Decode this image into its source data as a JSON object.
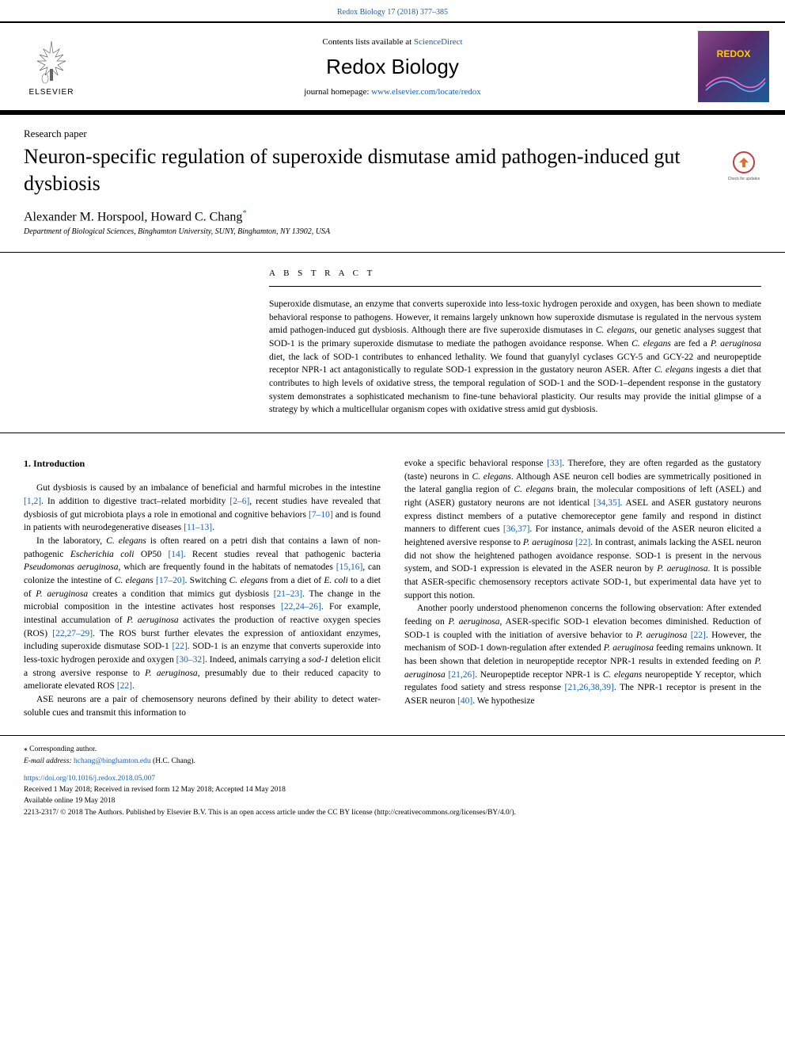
{
  "header": {
    "top_citation": "Redox Biology 17 (2018) 377–385",
    "contents_text": "Contents lists available at ",
    "contents_link": "ScienceDirect",
    "journal_name": "Redox Biology",
    "homepage_label": "journal homepage: ",
    "homepage_url": "www.elsevier.com/locate/redox",
    "elsevier_label": "ELSEVIER",
    "redox_label": "REDOX"
  },
  "paper": {
    "type": "Research paper",
    "title": "Neuron-specific regulation of superoxide dismutase amid pathogen-induced gut dysbiosis",
    "authors": "Alexander M. Horspool, Howard C. Chang",
    "corresponding_mark": "*",
    "affiliation": "Department of Biological Sciences, Binghamton University, SUNY, Binghamton, NY 13902, USA"
  },
  "abstract": {
    "heading": "A B S T R A C T",
    "text_parts": [
      "Superoxide dismutase, an enzyme that converts superoxide into less-toxic hydrogen peroxide and oxygen, has been shown to mediate behavioral response to pathogens. However, it remains largely unknown how superoxide dismutase is regulated in the nervous system amid pathogen-induced gut dysbiosis. Although there are five superoxide dismutases in ",
      "C. elegans",
      ", our genetic analyses suggest that SOD-1 is the primary superoxide dismutase to mediate the pathogen avoidance response. When ",
      "C. elegans",
      " are fed a ",
      "P. aeruginosa",
      " diet, the lack of SOD-1 contributes to enhanced lethality. We found that guanylyl cyclases GCY-5 and GCY-22 and neuropeptide receptor NPR-1 act antagonistically to regulate SOD-1 expression in the gustatory neuron ASER. After ",
      "C. elegans",
      " ingests a diet that contributes to high levels of oxidative stress, the temporal regulation of SOD-1 and the SOD-1–dependent response in the gustatory system demonstrates a sophisticated mechanism to fine-tune behavioral plasticity. Our results may provide the initial glimpse of a strategy by which a multicellular organism copes with oxidative stress amid gut dysbiosis."
    ]
  },
  "intro": {
    "heading": "1. Introduction",
    "left_column": {
      "p1_parts": [
        "Gut dysbiosis is caused by an imbalance of beneficial and harmful microbes in the intestine ",
        "[1,2]",
        ". In addition to digestive tract–related morbidity ",
        "[2–6]",
        ", recent studies have revealed that dysbiosis of gut microbiota plays a role in emotional and cognitive behaviors ",
        "[7–10]",
        " and is found in patients with neurodegenerative diseases ",
        "[11–13]",
        "."
      ],
      "p2_parts": [
        "In the laboratory, ",
        "C. elegans",
        " is often reared on a petri dish that contains a lawn of non-pathogenic ",
        "Escherichia coli",
        " OP50 ",
        "[14]",
        ". Recent studies reveal that pathogenic bacteria ",
        "Pseudomonas aeruginosa",
        ", which are frequently found in the habitats of nematodes ",
        "[15,16]",
        ", can colonize the intestine of ",
        "C. elegans",
        " ",
        "[17–20]",
        ". Switching ",
        "C. elegans",
        " from a diet of ",
        "E. coli",
        " to a diet of ",
        "P. aeruginosa",
        " creates a condition that mimics gut dysbiosis ",
        "[21–23]",
        ". The change in the microbial composition in the intestine activates host responses ",
        "[22,24–26]",
        ". For example, intestinal accumulation of ",
        "P. aeruginosa",
        " activates the production of reactive oxygen species (ROS) ",
        "[22,27–29]",
        ". The ROS burst further elevates the expression of antioxidant enzymes, including superoxide dismutase SOD-1 ",
        "[22]",
        ". SOD-1 is an enzyme that converts superoxide into less-toxic hydrogen peroxide and oxygen ",
        "[30–32]",
        ". Indeed, animals carrying a ",
        "sod-1",
        " deletion elicit a strong aversive response to ",
        "P. aeruginosa",
        ", presumably due to their reduced capacity to ameliorate elevated ROS ",
        "[22]",
        "."
      ],
      "p3_parts": [
        "ASE neurons are a pair of chemosensory neurons defined by their ability to detect water-soluble cues and transmit this information to"
      ]
    },
    "right_column": {
      "p1_parts": [
        "evoke a specific behavioral response ",
        "[33]",
        ". Therefore, they are often regarded as the gustatory (taste) neurons in ",
        "C. elegans",
        ". Although ASE neuron cell bodies are symmetrically positioned in the lateral ganglia region of ",
        "C. elegans",
        " brain, the molecular compositions of left (ASEL) and right (ASER) gustatory neurons are not identical ",
        "[34,35]",
        ". ASEL and ASER gustatory neurons express distinct members of a putative chemoreceptor gene family and respond in distinct manners to different cues ",
        "[36,37]",
        ". For instance, animals devoid of the ASER neuron elicited a heightened aversive response to ",
        "P. aeruginosa",
        " ",
        "[22]",
        ". In contrast, animals lacking the ASEL neuron did not show the heightened pathogen avoidance response. SOD-1 is present in the nervous system, and SOD-1 expression is elevated in the ASER neuron by ",
        "P. aeruginosa",
        ". It is possible that ASER-specific chemosensory receptors activate SOD-1, but experimental data have yet to support this notion."
      ],
      "p2_parts": [
        "Another poorly understood phenomenon concerns the following observation: After extended feeding on ",
        "P. aeruginosa",
        ", ASER-specific SOD-1 elevation becomes diminished. Reduction of SOD-1 is coupled with the initiation of aversive behavior to ",
        "P. aeruginosa",
        " ",
        "[22]",
        ". However, the mechanism of SOD-1 down-regulation after extended ",
        "P. aeruginosa",
        " feeding remains unknown. It has been shown that deletion in neuropeptide receptor NPR-1 results in extended feeding on ",
        "P. aeruginosa",
        " ",
        "[21,26]",
        ". Neuropeptide receptor NPR-1 is ",
        "C. elegans",
        " neuropeptide Y receptor, which regulates food satiety and stress response ",
        "[21,26,38,39]",
        ". The NPR-1 receptor is present in the ASER neuron ",
        "[40]",
        ". We hypothesize"
      ]
    }
  },
  "footer": {
    "corresponding_note": "⁎ Corresponding author.",
    "email_label": "E-mail address: ",
    "email": "hchang@binghamton.edu",
    "email_suffix": " (H.C. Chang).",
    "doi": "https://doi.org/10.1016/j.redox.2018.05.007",
    "received": "Received 1 May 2018; Received in revised form 12 May 2018; Accepted 14 May 2018",
    "available": "Available online 19 May 2018",
    "copyright": "2213-2317/ © 2018 The Authors. Published by Elsevier B.V. This is an open access article under the CC BY license (http://creativecommons.org/licenses/BY/4.0/)."
  },
  "colors": {
    "link": "#1860b0",
    "text": "#000000",
    "redox_bg_start": "#8a4a8a",
    "redox_bg_end": "#1a5a9a",
    "redox_text": "#ffcc00"
  }
}
